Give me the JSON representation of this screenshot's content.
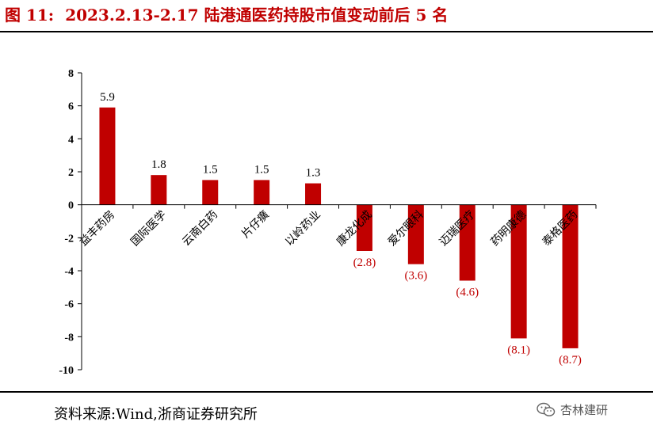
{
  "header": {
    "figure_label": "图 11:",
    "title": "2023.2.13-2.17 陆港通医药持股市值变动前后 5 名"
  },
  "source": {
    "text": "资料来源:Wind,浙商证券研究所"
  },
  "watermark": {
    "text": "杏林建研",
    "icon": "wechat-icon"
  },
  "chart_data": {
    "type": "bar",
    "title": "2023.2.13-2.17 陆港通医药持股市值变动前后 5 名",
    "xlabel": "",
    "ylabel": "",
    "ylim": [
      -10,
      8
    ],
    "yticks": [
      8,
      6,
      4,
      2,
      0,
      -2,
      -4,
      -6,
      -8,
      -10
    ],
    "categories": [
      "益丰药房",
      "国际医学",
      "云南白药",
      "片仔癀",
      "以岭药业",
      "康龙化成",
      "爱尔眼科",
      "迈瑞医疗",
      "药明康德",
      "泰格医药"
    ],
    "values": [
      5.9,
      1.8,
      1.5,
      1.5,
      1.3,
      -2.8,
      -3.6,
      -4.6,
      -8.1,
      -8.7
    ],
    "data_labels": [
      "5.9",
      "1.8",
      "1.5",
      "1.5",
      "1.3",
      "(2.8)",
      "(3.6)",
      "(4.6)",
      "(8.1)",
      "(8.7)"
    ],
    "bar_color": "#c00000",
    "positive_label_color": "#000000",
    "negative_label_color": "#c00000",
    "grid": false,
    "legend": "none"
  }
}
